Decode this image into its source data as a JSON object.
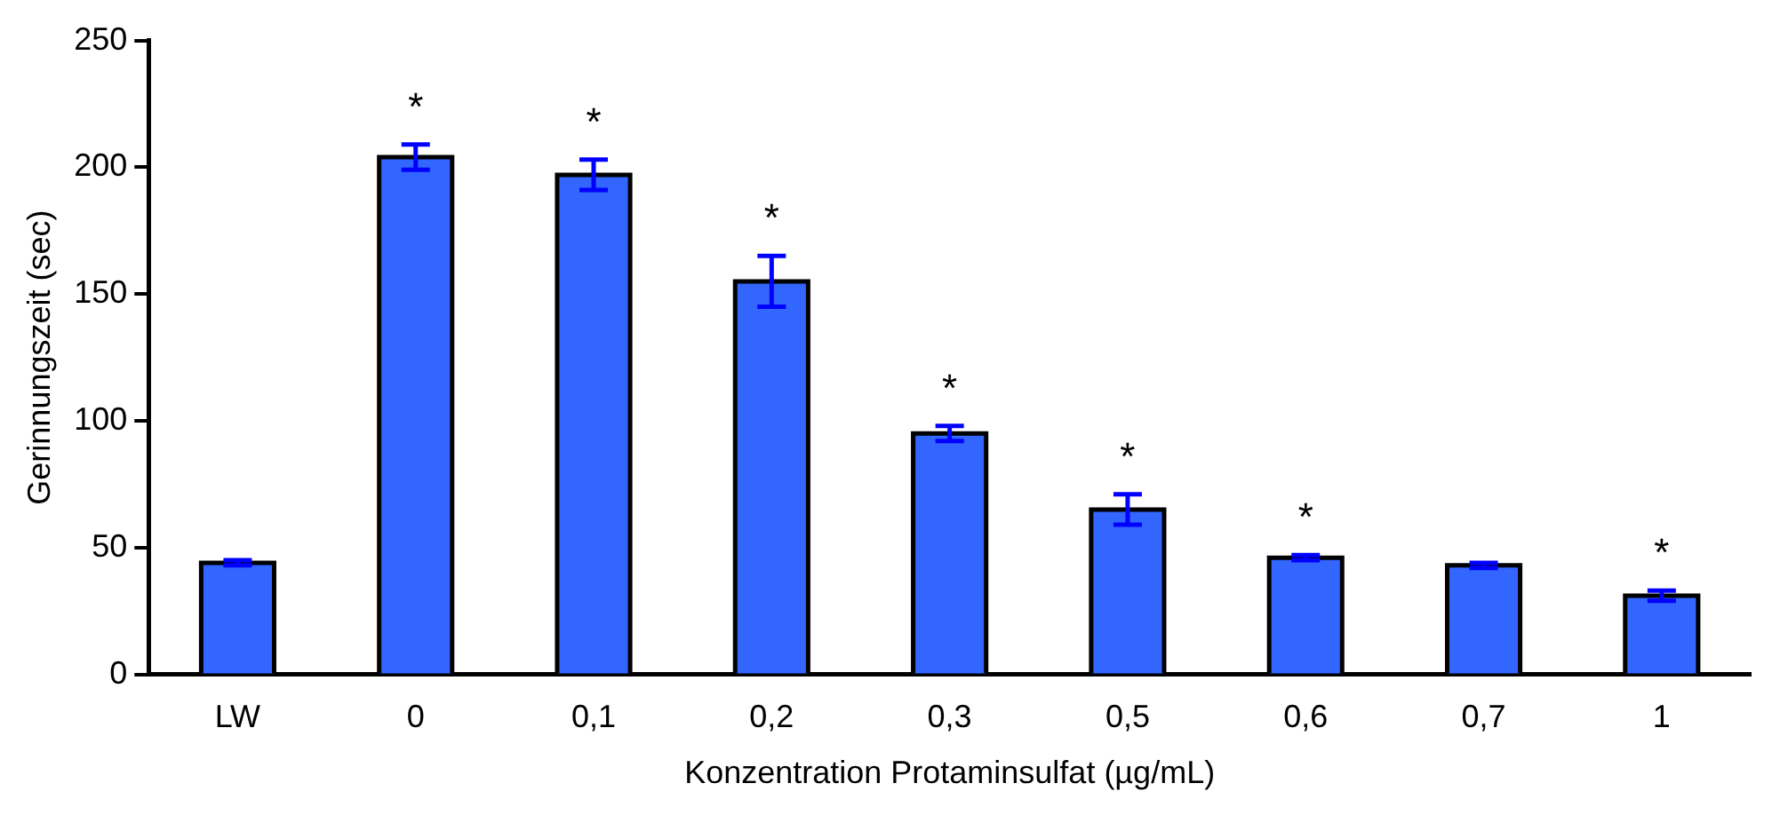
{
  "chart_data": {
    "type": "bar",
    "ylabel": "Gerinnungszeit (sec)",
    "xlabel": "Konzentration Protaminsulfat (µg/mL)",
    "categories": [
      "LW",
      "0",
      "0,1",
      "0,2",
      "0,3",
      "0,5",
      "0,6",
      "0,7",
      "1"
    ],
    "values": [
      44,
      204,
      197,
      155,
      95,
      65,
      46,
      43,
      31
    ],
    "errors": [
      1,
      5,
      6,
      10,
      3,
      6,
      1,
      1,
      2
    ],
    "color": "#3366ff",
    "ylim": [
      0,
      250
    ],
    "yticks": [
      0,
      50,
      100,
      150,
      200,
      250
    ],
    "grid": false,
    "legend": false,
    "annotations": [
      {
        "text": "*",
        "x": "0",
        "y": 204
      },
      {
        "text": "*",
        "x": "0,1",
        "y": 197
      },
      {
        "text": "*",
        "x": "0,2",
        "y": 155
      },
      {
        "text": "*",
        "x": "0,3",
        "y": 95
      },
      {
        "text": "*",
        "x": "0,5",
        "y": 65
      },
      {
        "text": "*",
        "x": "0,6",
        "y": 46
      },
      {
        "text": "*",
        "x": "1",
        "y": 31
      }
    ]
  }
}
